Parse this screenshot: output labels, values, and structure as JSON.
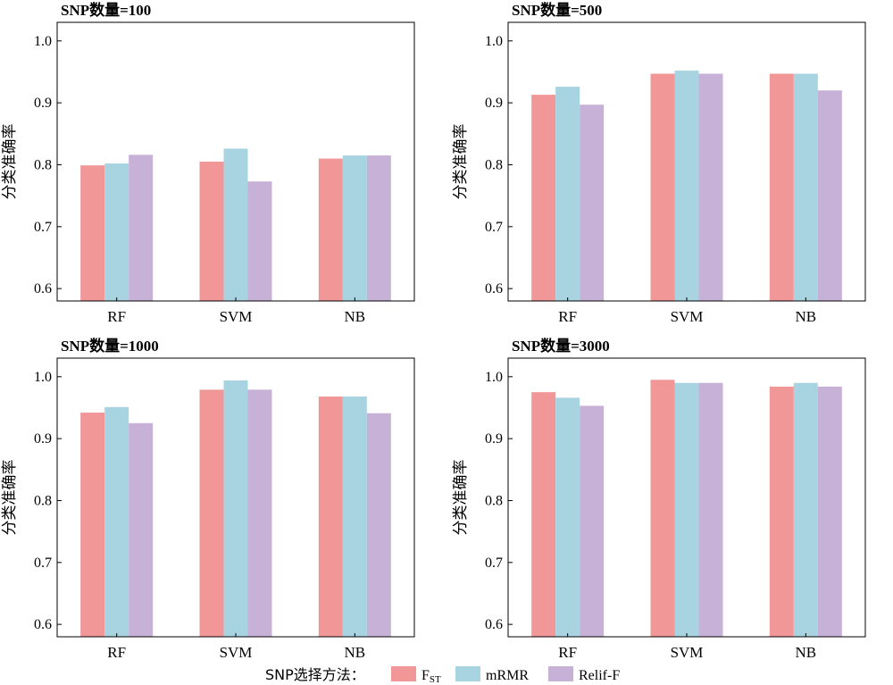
{
  "colors": {
    "series": [
      "#f19797",
      "#a8d4e2",
      "#c7b1d6"
    ],
    "axis": "#000000"
  },
  "legend": {
    "label": "SNP选择方法：",
    "placement": "bottom-center",
    "entries": [
      {
        "name": "F",
        "sub": "ST"
      },
      {
        "name": "mRMR",
        "sub": ""
      },
      {
        "name": "Relif-F",
        "sub": ""
      }
    ]
  },
  "chart_data": [
    {
      "type": "bar",
      "title": "SNP数量=100",
      "ylabel": "分类准确率",
      "ylim": [
        0.58,
        1.03
      ],
      "yticks": [
        0.6,
        0.7,
        0.8,
        0.9,
        1.0
      ],
      "ytick_labels": [
        "0.6",
        "0.7",
        "0.8",
        "0.9",
        "1.0"
      ],
      "categories": [
        "RF",
        "SVM",
        "NB"
      ],
      "series": [
        {
          "values": [
            0.799,
            0.805,
            0.81
          ]
        },
        {
          "values": [
            0.802,
            0.826,
            0.815
          ]
        },
        {
          "values": [
            0.816,
            0.773,
            0.815
          ]
        }
      ]
    },
    {
      "type": "bar",
      "title": "SNP数量=500",
      "ylabel": "分类准确率",
      "ylim": [
        0.58,
        1.03
      ],
      "yticks": [
        0.6,
        0.7,
        0.8,
        0.9,
        1.0
      ],
      "ytick_labels": [
        "0.6",
        "0.7",
        "0.8",
        "0.9",
        "1.0"
      ],
      "categories": [
        "RF",
        "SVM",
        "NB"
      ],
      "series": [
        {
          "values": [
            0.913,
            0.947,
            0.947
          ]
        },
        {
          "values": [
            0.926,
            0.952,
            0.947
          ]
        },
        {
          "values": [
            0.897,
            0.947,
            0.92
          ]
        }
      ]
    },
    {
      "type": "bar",
      "title": "SNP数量=1000",
      "ylabel": "分类准确率",
      "ylim": [
        0.58,
        1.03
      ],
      "yticks": [
        0.6,
        0.7,
        0.8,
        0.9,
        1.0
      ],
      "ytick_labels": [
        "0.6",
        "0.7",
        "0.8",
        "0.9",
        "1.0"
      ],
      "categories": [
        "RF",
        "SVM",
        "NB"
      ],
      "series": [
        {
          "values": [
            0.942,
            0.979,
            0.968
          ]
        },
        {
          "values": [
            0.951,
            0.994,
            0.968
          ]
        },
        {
          "values": [
            0.925,
            0.979,
            0.941
          ]
        }
      ]
    },
    {
      "type": "bar",
      "title": "SNP数量=3000",
      "ylabel": "分类准确率",
      "ylim": [
        0.58,
        1.03
      ],
      "yticks": [
        0.6,
        0.7,
        0.8,
        0.9,
        1.0
      ],
      "ytick_labels": [
        "0.6",
        "0.7",
        "0.8",
        "0.9",
        "1.0"
      ],
      "categories": [
        "RF",
        "SVM",
        "NB"
      ],
      "series": [
        {
          "values": [
            0.975,
            0.995,
            0.984
          ]
        },
        {
          "values": [
            0.966,
            0.99,
            0.99
          ]
        },
        {
          "values": [
            0.953,
            0.99,
            0.984
          ]
        }
      ]
    }
  ]
}
